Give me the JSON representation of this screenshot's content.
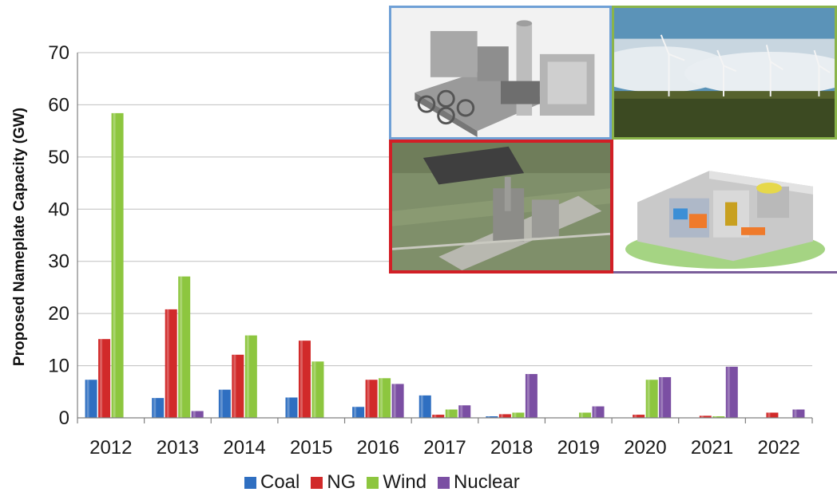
{
  "chart_data": {
    "type": "bar",
    "title": "",
    "xlabel": "",
    "ylabel": "Proposed Nameplate Capacity (GW)",
    "ylim": [
      0,
      70
    ],
    "yticks": [
      "0",
      "10",
      "20",
      "30",
      "40",
      "50",
      "60",
      "70"
    ],
    "categories": [
      "2012",
      "2013",
      "2014",
      "2015",
      "2016",
      "2017",
      "2018",
      "2019",
      "2020",
      "2021",
      "2022"
    ],
    "grid": true,
    "legend_position": "bottom",
    "series": [
      {
        "name": "Coal",
        "color": "#2f6fc1",
        "values": [
          7.3,
          3.8,
          5.4,
          3.9,
          2.1,
          4.3,
          0.3,
          0,
          0,
          0,
          0
        ]
      },
      {
        "name": "NG",
        "color": "#d12a2a",
        "values": [
          15.1,
          20.8,
          12.1,
          14.8,
          7.3,
          0.6,
          0.7,
          0,
          0.6,
          0.4,
          1.0
        ]
      },
      {
        "name": "Wind",
        "color": "#8dc63f",
        "values": [
          58.4,
          27.1,
          15.8,
          10.8,
          7.6,
          1.6,
          1.0,
          1.0,
          7.3,
          0.3,
          0
        ]
      },
      {
        "name": "Nuclear",
        "color": "#7b4fa3",
        "values": [
          0,
          1.3,
          0,
          0,
          6.5,
          2.4,
          8.4,
          2.2,
          7.8,
          9.8,
          1.6
        ]
      }
    ]
  },
  "photos": [
    {
      "icon": "gas-turbine-plant-image",
      "border_color": "#6fa0d6"
    },
    {
      "icon": "wind-farm-image",
      "border_color": "#8ab44a"
    },
    {
      "icon": "coal-plant-aerial-image",
      "border_color": "#d21f26"
    },
    {
      "icon": "nuclear-reactor-cutaway-image",
      "border_color": "#7a5e9a"
    }
  ]
}
